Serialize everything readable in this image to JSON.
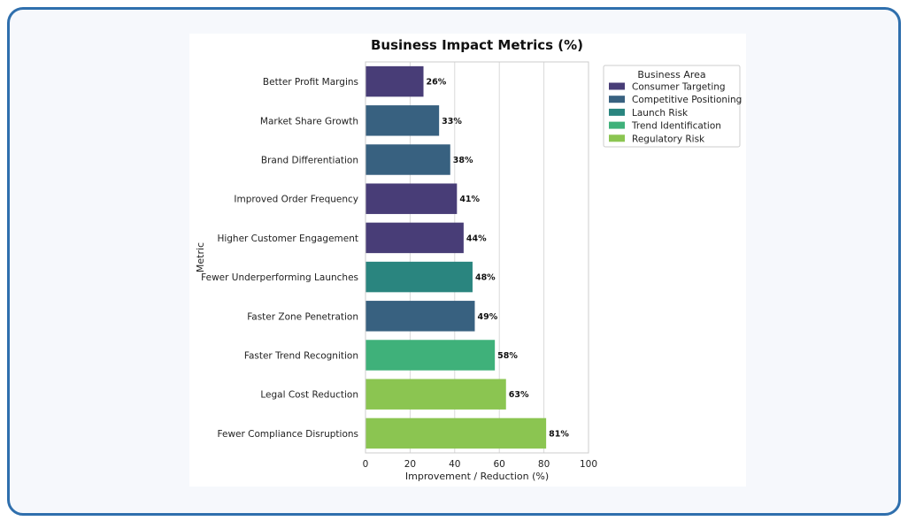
{
  "chart_data": {
    "type": "bar",
    "orientation": "horizontal",
    "title": "Business Impact Metrics (%)",
    "xlabel": "Improvement / Reduction (%)",
    "ylabel": "Metric",
    "xlim": [
      0,
      100
    ],
    "xticks": [
      "0",
      "20",
      "40",
      "60",
      "80",
      "100"
    ],
    "grid": "vertical",
    "legend": {
      "title": "Business Area",
      "position": "outside-top-right",
      "entries": [
        {
          "name": "Consumer Targeting",
          "color": "#483d77"
        },
        {
          "name": "Competitive Positioning",
          "color": "#386180"
        },
        {
          "name": "Launch Risk",
          "color": "#2a857f"
        },
        {
          "name": "Trend Identification",
          "color": "#3fb17a"
        },
        {
          "name": "Regulatory Risk",
          "color": "#8bc551"
        }
      ]
    },
    "bars": [
      {
        "category": "Better Profit Margins",
        "value": 26,
        "label": "26%",
        "area": "Consumer Targeting"
      },
      {
        "category": "Market Share Growth",
        "value": 33,
        "label": "33%",
        "area": "Competitive Positioning"
      },
      {
        "category": "Brand Differentiation",
        "value": 38,
        "label": "38%",
        "area": "Competitive Positioning"
      },
      {
        "category": "Improved Order Frequency",
        "value": 41,
        "label": "41%",
        "area": "Consumer Targeting"
      },
      {
        "category": "Higher Customer Engagement",
        "value": 44,
        "label": "44%",
        "area": "Consumer Targeting"
      },
      {
        "category": "Fewer Underperforming Launches",
        "value": 48,
        "label": "48%",
        "area": "Launch Risk"
      },
      {
        "category": "Faster Zone Penetration",
        "value": 49,
        "label": "49%",
        "area": "Competitive Positioning"
      },
      {
        "category": "Faster Trend Recognition",
        "value": 58,
        "label": "58%",
        "area": "Trend Identification"
      },
      {
        "category": "Legal Cost Reduction",
        "value": 63,
        "label": "63%",
        "area": "Regulatory Risk"
      },
      {
        "category": "Fewer Compliance Disruptions",
        "value": 81,
        "label": "81%",
        "area": "Regulatory Risk"
      }
    ]
  }
}
